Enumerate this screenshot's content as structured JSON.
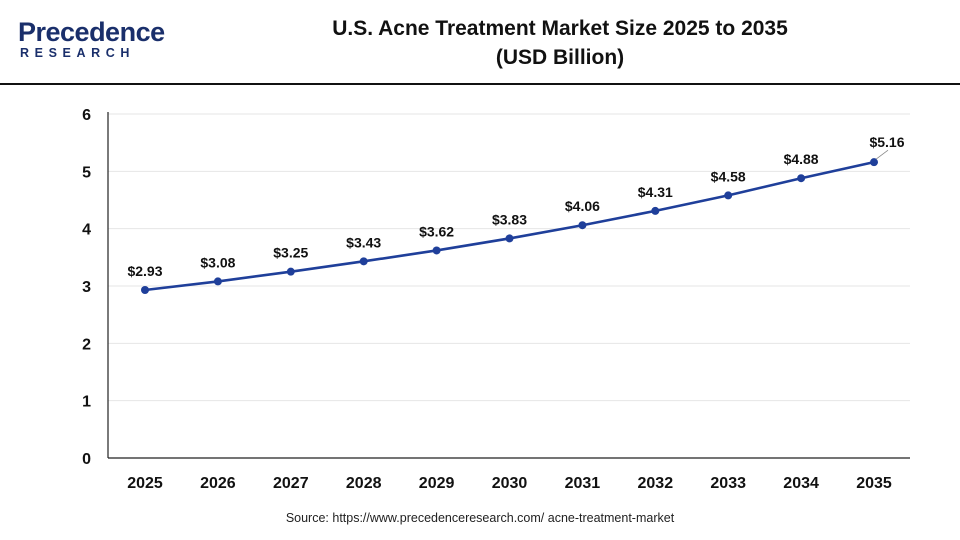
{
  "logo": {
    "brand_top": "Precedence",
    "brand_bottom": "RESEARCH"
  },
  "header": {
    "title_line1": "U.S. Acne Treatment Market Size 2025 to 2035",
    "title_line2": "(USD Billion)"
  },
  "source": "Source: https://www.precedenceresearch.com/ acne-treatment-market",
  "colors": {
    "line": "#1f3f9a",
    "grid": "#e6e6e6",
    "axis": "#222222"
  },
  "chart_data": {
    "type": "line",
    "title": "U.S. Acne Treatment Market Size 2025 to 2035 (USD Billion)",
    "xlabel": "",
    "ylabel": "",
    "categories": [
      "2025",
      "2026",
      "2027",
      "2028",
      "2029",
      "2030",
      "2031",
      "2032",
      "2033",
      "2034",
      "2035"
    ],
    "series": [
      {
        "values": [
          2.93,
          3.08,
          3.25,
          3.43,
          3.62,
          3.83,
          4.06,
          4.31,
          4.58,
          4.88,
          5.16
        ],
        "labels": [
          "$2.93",
          "$3.08",
          "$3.25",
          "$3.43",
          "$3.62",
          "$3.83",
          "$4.06",
          "$4.31",
          "$4.58",
          "$4.88",
          "$5.16"
        ]
      }
    ],
    "ylim": [
      0,
      6
    ],
    "yticks": [
      "0",
      "1",
      "2",
      "3",
      "4",
      "5",
      "6"
    ],
    "grid": true,
    "legend": "none"
  }
}
